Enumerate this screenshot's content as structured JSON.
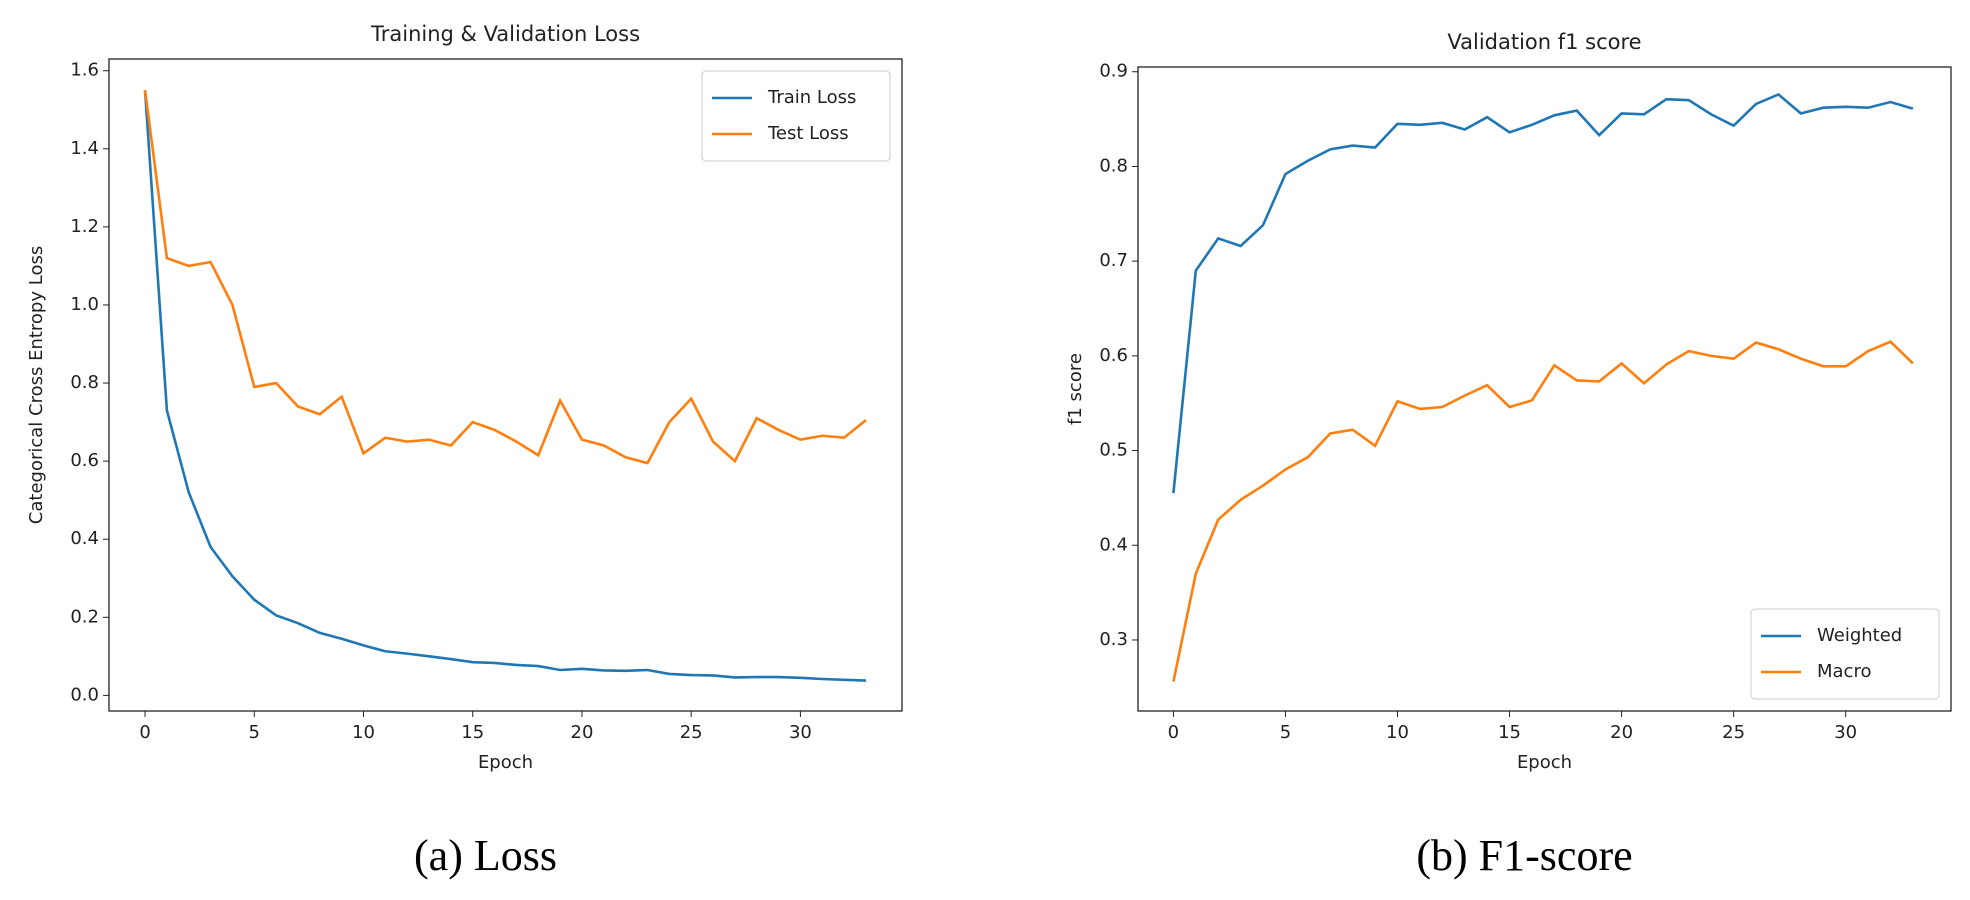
{
  "chart_data": [
    {
      "type": "line",
      "title": "Training & Validation Loss",
      "xlabel": "Epoch",
      "ylabel": "Categorical Cross Entropy Loss",
      "caption": "(a) Loss",
      "x": [
        0,
        1,
        2,
        3,
        4,
        5,
        6,
        7,
        8,
        9,
        10,
        11,
        12,
        13,
        14,
        15,
        16,
        17,
        18,
        19,
        20,
        21,
        22,
        23,
        24,
        25,
        26,
        27,
        28,
        29,
        30,
        31,
        32,
        33
      ],
      "series": [
        {
          "name": "Train Loss",
          "color": "#1f77b4",
          "values": [
            1.55,
            0.73,
            0.52,
            0.38,
            0.305,
            0.245,
            0.205,
            0.185,
            0.16,
            0.145,
            0.128,
            0.113,
            0.107,
            0.1,
            0.093,
            0.085,
            0.083,
            0.078,
            0.075,
            0.065,
            0.068,
            0.064,
            0.063,
            0.065,
            0.055,
            0.052,
            0.051,
            0.046,
            0.047,
            0.047,
            0.045,
            0.042,
            0.04,
            0.038
          ]
        },
        {
          "name": "Test Loss",
          "color": "#ff7f0e",
          "values": [
            1.55,
            1.12,
            1.1,
            1.11,
            1.0,
            0.79,
            0.8,
            0.74,
            0.72,
            0.765,
            0.62,
            0.66,
            0.65,
            0.655,
            0.64,
            0.7,
            0.68,
            0.65,
            0.615,
            0.755,
            0.655,
            0.64,
            0.61,
            0.595,
            0.7,
            0.76,
            0.65,
            0.6,
            0.71,
            0.68,
            0.655,
            0.665,
            0.66,
            0.705
          ]
        }
      ],
      "xlim": [
        -1.65,
        34.65
      ],
      "xticks": [
        0,
        5,
        10,
        15,
        20,
        25,
        30
      ],
      "ylim": [
        -0.04,
        1.63
      ],
      "yticks": [
        {
          "value": 0,
          "label": "0.0"
        },
        0.2,
        0.4,
        0.6,
        0.8,
        {
          "value": 1,
          "label": "1.0"
        },
        1.2,
        1.4,
        1.6
      ],
      "legend": "upper right"
    },
    {
      "type": "line",
      "title": "Validation f1 score",
      "xlabel": "Epoch",
      "ylabel": "f1 score",
      "caption": "(b) F1-score",
      "x": [
        0,
        1,
        2,
        3,
        4,
        5,
        6,
        7,
        8,
        9,
        10,
        11,
        12,
        13,
        14,
        15,
        16,
        17,
        18,
        19,
        20,
        21,
        22,
        23,
        24,
        25,
        26,
        27,
        28,
        29,
        30,
        31,
        32,
        33
      ],
      "series": [
        {
          "name": "Weighted",
          "color": "#1f77b4",
          "values": [
            0.455,
            0.69,
            0.724,
            0.716,
            0.738,
            0.792,
            0.806,
            0.818,
            0.822,
            0.82,
            0.845,
            0.844,
            0.846,
            0.839,
            0.852,
            0.836,
            0.844,
            0.854,
            0.859,
            0.833,
            0.856,
            0.855,
            0.871,
            0.87,
            0.855,
            0.843,
            0.866,
            0.876,
            0.856,
            0.862,
            0.863,
            0.862,
            0.868,
            0.861
          ]
        },
        {
          "name": "Macro",
          "color": "#ff7f0e",
          "values": [
            0.256,
            0.37,
            0.427,
            0.448,
            0.463,
            0.48,
            0.493,
            0.518,
            0.522,
            0.505,
            0.552,
            0.544,
            0.546,
            0.558,
            0.569,
            0.546,
            0.553,
            0.59,
            0.574,
            0.573,
            0.592,
            0.571,
            0.591,
            0.605,
            0.6,
            0.597,
            0.614,
            0.607,
            0.597,
            0.589,
            0.589,
            0.605,
            0.615,
            0.592
          ]
        }
      ],
      "xlim": [
        -1.58,
        34.7
      ],
      "xticks": [
        0,
        5,
        10,
        15,
        20,
        25,
        30
      ],
      "ylim": [
        0.225,
        0.905
      ],
      "yticks": [
        0.3,
        0.4,
        0.5,
        0.6,
        0.7,
        0.8,
        0.9
      ],
      "legend": "lower right"
    }
  ]
}
